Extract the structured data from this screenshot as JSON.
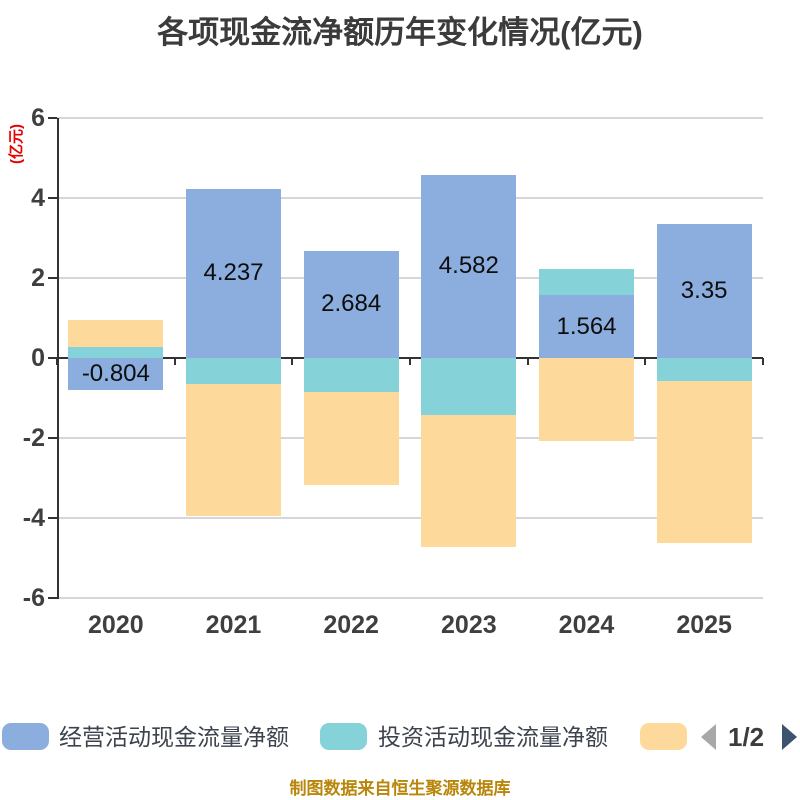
{
  "title": "各项现金流净额历年变化情况(亿元)",
  "y_axis_unit_label": "(亿元)",
  "footer": "制图数据来自恒生聚源数据库",
  "legend": {
    "items": [
      {
        "key": "operating",
        "label": "经营活动现金流量净额",
        "color": "#8CAEDF"
      },
      {
        "key": "investing",
        "label": "投资活动现金流量净额",
        "color": "#85D3D8"
      },
      {
        "key": "financing",
        "label": "",
        "color": "#FDD99B"
      }
    ],
    "pagination": {
      "current": "1/2",
      "prev_color": "#A8A8A8",
      "next_color": "#3E536E"
    }
  },
  "chart_data": {
    "type": "bar",
    "stacked": true,
    "title": "各项现金流净额历年变化情况(亿元)",
    "ylabel": "(亿元)",
    "xlabel": "",
    "categories": [
      "2020",
      "2021",
      "2022",
      "2023",
      "2024",
      "2025"
    ],
    "series": [
      {
        "key": "operating",
        "name": "经营活动现金流量净额",
        "color": "#8CAEDF",
        "labeled": true,
        "values": [
          -0.804,
          4.237,
          2.684,
          4.582,
          1.564,
          3.35
        ]
      },
      {
        "key": "investing",
        "name": "投资活动现金流量净额",
        "color": "#85D3D8",
        "labeled": false,
        "values": [
          0.28,
          -0.65,
          -0.85,
          -1.43,
          0.66,
          -0.58
        ]
      },
      {
        "key": "financing",
        "name": "",
        "color": "#FDD99B",
        "labeled": false,
        "values": [
          0.67,
          -3.3,
          -2.33,
          -3.3,
          -2.08,
          -4.05
        ]
      }
    ],
    "data_labels": [
      "-0.804",
      "4.237",
      "2.684",
      "4.582",
      "1.564",
      "3.35"
    ],
    "yticks": [
      6,
      4,
      2,
      0,
      -2,
      -4,
      -6
    ],
    "ylim": [
      -6,
      6
    ],
    "grid": true,
    "legend_position": "bottom"
  },
  "colors": {
    "background": "#FFFFFF",
    "title_text": "#3B3B3B",
    "axis_line": "#333333",
    "gridline": "#D6D6D6",
    "axis_text": "#3F3F3F",
    "value_label_text": "#0D0D0D",
    "y_unit_text": "#E60000",
    "footer_text": "#B8860B"
  }
}
